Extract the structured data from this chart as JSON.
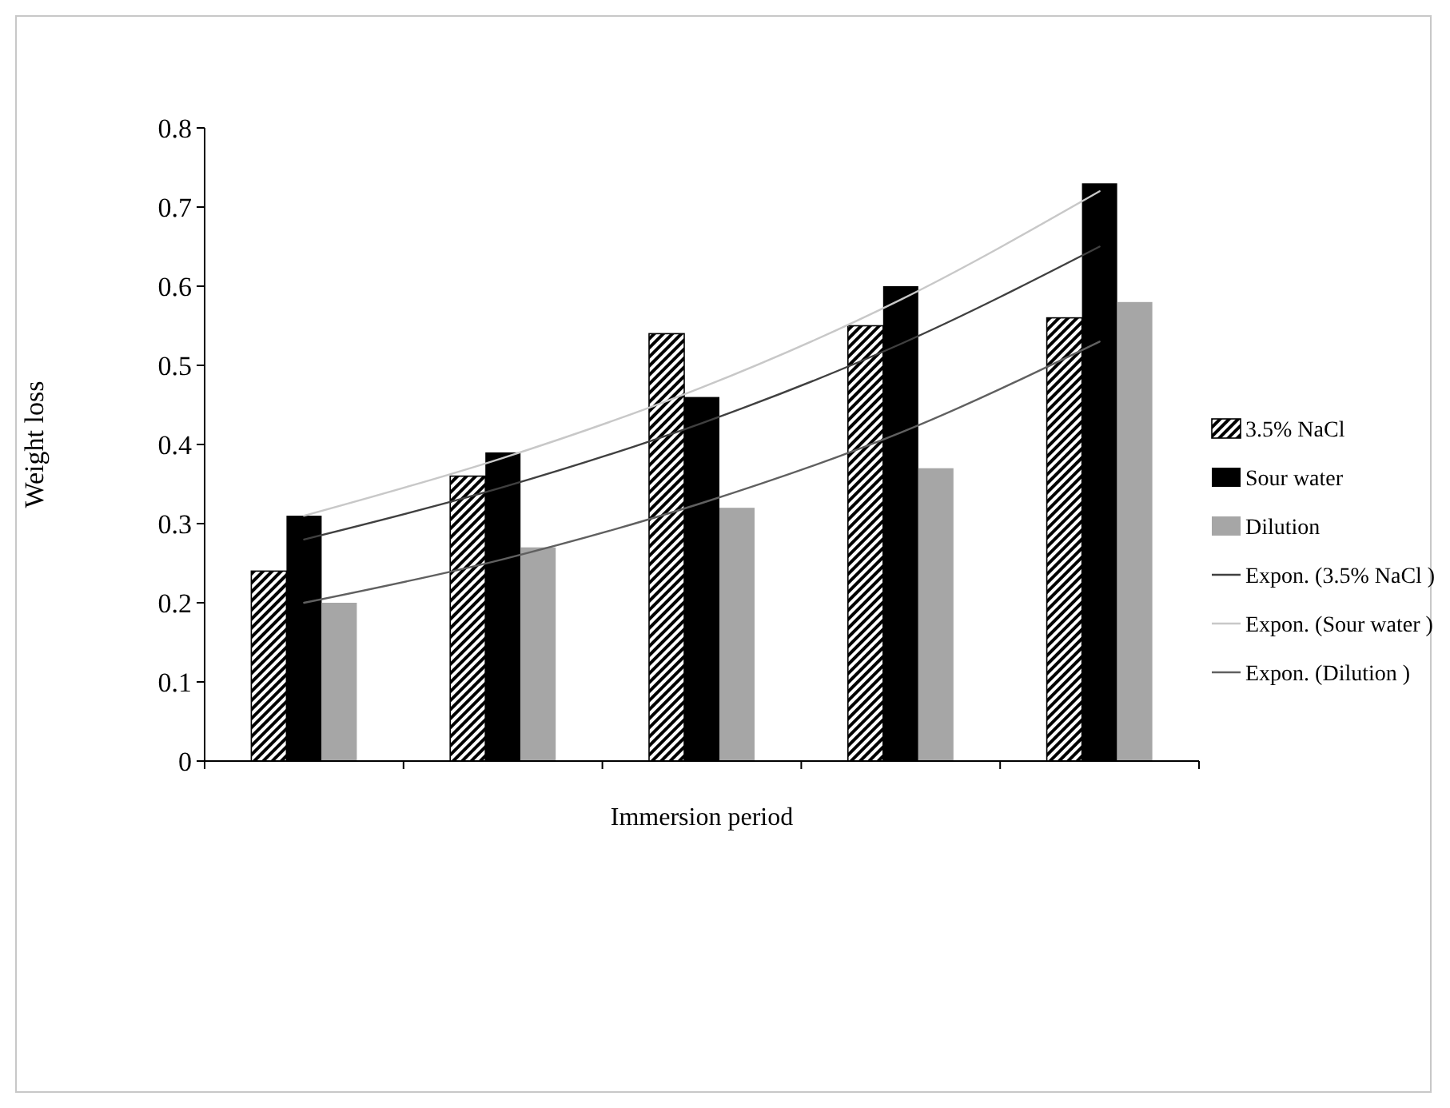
{
  "chart_data": {
    "type": "bar",
    "xlabel": "Immersion period",
    "ylabel": "Weight loss",
    "categories": [
      null,
      null,
      null,
      null,
      null
    ],
    "ylim": [
      0,
      0.8
    ],
    "yticks": [
      0,
      0.1,
      0.2,
      0.3,
      0.4,
      0.5,
      0.6,
      0.7,
      0.8
    ],
    "grid": false,
    "legend": "right",
    "series": [
      {
        "name": "3.5% NaCl",
        "color": "#000000",
        "values": [
          0.24,
          0.36,
          0.54,
          0.55,
          0.56
        ]
      },
      {
        "name": "Sour water",
        "color": "#000000",
        "values": [
          0.31,
          0.39,
          0.46,
          0.6,
          0.73
        ]
      },
      {
        "name": "Dilution",
        "color": "#a6a6a6",
        "values": [
          0.2,
          0.27,
          0.32,
          0.37,
          0.58
        ]
      },
      {
        "name": "Expon. (3.5% NaCl )",
        "type": "line",
        "color": "#404040",
        "values": [
          0.28,
          0.346,
          0.427,
          0.527,
          0.65
        ]
      },
      {
        "name": "Expon. (Sour water )",
        "type": "line",
        "color": "#c8c8c8",
        "values": [
          0.31,
          0.383,
          0.472,
          0.583,
          0.72
        ]
      },
      {
        "name": "Expon. (Dilution )",
        "type": "line",
        "color": "#606060",
        "values": [
          0.2,
          0.255,
          0.326,
          0.415,
          0.53
        ]
      }
    ]
  }
}
